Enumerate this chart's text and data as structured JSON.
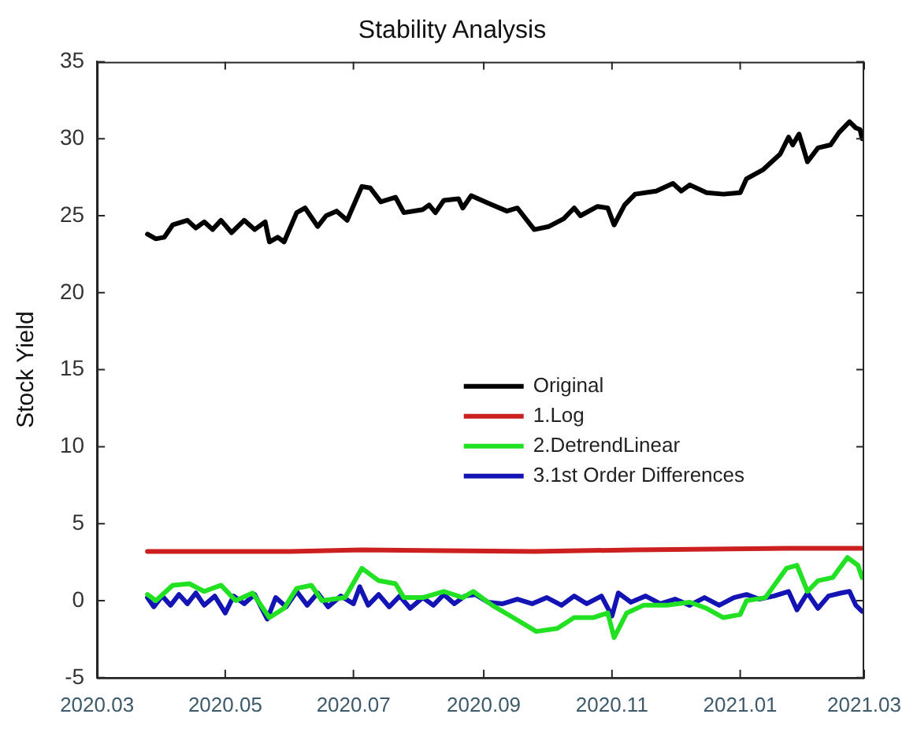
{
  "chart_data": {
    "type": "line",
    "title": "Stability Analysis",
    "ylabel": "Stock Yield",
    "xlim": [
      "2020-03-01",
      "2021-03-01"
    ],
    "xticks": [
      {
        "value": "2020-03-01",
        "label": "2020.03"
      },
      {
        "value": "2020-05-01",
        "label": "2020.05"
      },
      {
        "value": "2020-07-01",
        "label": "2020.07"
      },
      {
        "value": "2020-09-01",
        "label": "2020.09"
      },
      {
        "value": "2020-11-01",
        "label": "2020.11"
      },
      {
        "value": "2021-01-01",
        "label": "2021.01"
      },
      {
        "value": "2021-03-01",
        "label": "2021.03"
      }
    ],
    "ylim": [
      -5,
      35
    ],
    "yticks": [
      -5,
      0,
      5,
      10,
      15,
      20,
      25,
      30,
      35
    ],
    "grid": false,
    "legend": "right",
    "marker": "none",
    "line_style": "solid",
    "series": [
      {
        "name": "Original",
        "color": "#000000",
        "x": [
          "2020-03-25",
          "2020-03-29",
          "2020-04-02",
          "2020-04-06",
          "2020-04-13",
          "2020-04-17",
          "2020-04-21",
          "2020-04-25",
          "2020-04-29",
          "2020-05-04",
          "2020-05-10",
          "2020-05-15",
          "2020-05-20",
          "2020-05-22",
          "2020-05-26",
          "2020-05-29",
          "2020-06-04",
          "2020-06-08",
          "2020-06-14",
          "2020-06-18",
          "2020-06-23",
          "2020-06-28",
          "2020-07-05",
          "2020-07-09",
          "2020-07-14",
          "2020-07-21",
          "2020-07-25",
          "2020-08-03",
          "2020-08-06",
          "2020-08-09",
          "2020-08-13",
          "2020-08-20",
          "2020-08-22",
          "2020-08-26",
          "2020-09-05",
          "2020-09-12",
          "2020-09-17",
          "2020-09-25",
          "2020-10-02",
          "2020-10-09",
          "2020-10-14",
          "2020-10-17",
          "2020-10-25",
          "2020-10-30",
          "2020-11-02",
          "2020-11-07",
          "2020-11-12",
          "2020-11-22",
          "2020-11-30",
          "2020-12-04",
          "2020-12-08",
          "2020-12-16",
          "2020-12-24",
          "2021-01-01",
          "2021-01-04",
          "2021-01-12",
          "2021-01-20",
          "2021-01-24",
          "2021-01-26",
          "2021-01-29",
          "2021-02-02",
          "2021-02-07",
          "2021-02-13",
          "2021-02-17",
          "2021-02-22",
          "2021-02-25",
          "2021-02-27",
          "2021-02-28"
        ],
        "values": [
          23.8,
          23.5,
          23.6,
          24.4,
          24.7,
          24.2,
          24.6,
          24.1,
          24.7,
          23.9,
          24.7,
          24.1,
          24.6,
          23.3,
          23.6,
          23.3,
          25.2,
          25.5,
          24.3,
          25.0,
          25.3,
          24.7,
          26.9,
          26.8,
          25.9,
          26.2,
          25.2,
          25.4,
          25.7,
          25.2,
          26.0,
          26.1,
          25.5,
          26.3,
          25.7,
          25.3,
          25.5,
          24.1,
          24.3,
          24.8,
          25.5,
          25.0,
          25.6,
          25.5,
          24.4,
          25.7,
          26.4,
          26.6,
          27.1,
          26.6,
          27.0,
          26.5,
          26.4,
          26.5,
          27.4,
          28.0,
          29.0,
          30.1,
          29.6,
          30.3,
          28.5,
          29.4,
          29.6,
          30.4,
          31.1,
          30.7,
          30.6,
          30.0
        ]
      },
      {
        "name": "1.Log",
        "color": "#cc1f1f",
        "x": [
          "2020-03-25",
          "2020-06-01",
          "2020-07-05",
          "2020-09-25",
          "2020-11-12",
          "2021-01-24",
          "2021-02-22",
          "2021-02-28"
        ],
        "values": [
          3.2,
          3.2,
          3.3,
          3.2,
          3.3,
          3.4,
          3.4,
          3.4
        ]
      },
      {
        "name": "2.DetrendLinear",
        "color": "#22e022",
        "x": [
          "2020-03-25",
          "2020-03-29",
          "2020-04-06",
          "2020-04-14",
          "2020-04-21",
          "2020-04-29",
          "2020-05-06",
          "2020-05-14",
          "2020-05-22",
          "2020-05-29",
          "2020-06-04",
          "2020-06-11",
          "2020-06-16",
          "2020-06-27",
          "2020-07-05",
          "2020-07-13",
          "2020-07-21",
          "2020-07-25",
          "2020-08-03",
          "2020-08-13",
          "2020-08-22",
          "2020-08-27",
          "2020-09-05",
          "2020-09-15",
          "2020-09-26",
          "2020-10-06",
          "2020-10-14",
          "2020-10-23",
          "2020-10-30",
          "2020-11-02",
          "2020-11-08",
          "2020-11-16",
          "2020-11-27",
          "2020-12-08",
          "2020-12-16",
          "2020-12-24",
          "2021-01-01",
          "2021-01-04",
          "2021-01-13",
          "2021-01-23",
          "2021-01-28",
          "2021-02-02",
          "2021-02-07",
          "2021-02-14",
          "2021-02-21",
          "2021-02-26",
          "2021-02-28"
        ],
        "values": [
          0.4,
          0,
          1.0,
          1.1,
          0.6,
          1.0,
          0,
          0.5,
          -1.1,
          -0.5,
          0.8,
          1.0,
          0,
          0.2,
          2.1,
          1.3,
          1.1,
          0.2,
          0.2,
          0.6,
          0.2,
          0.6,
          -0.3,
          -1.1,
          -2.0,
          -1.8,
          -1.1,
          -1.1,
          -0.8,
          -2.4,
          -0.8,
          -0.3,
          -0.3,
          -0.1,
          -0.5,
          -1.1,
          -0.9,
          0,
          0.2,
          2.1,
          2.3,
          0.6,
          1.3,
          1.5,
          2.8,
          2.3,
          1.5
        ]
      },
      {
        "name": "3.1st Order Differences",
        "color": "#1414b4",
        "x": [
          "2020-03-25",
          "2020-03-28",
          "2020-04-01",
          "2020-04-05",
          "2020-04-09",
          "2020-04-13",
          "2020-04-17",
          "2020-04-21",
          "2020-04-26",
          "2020-05-01",
          "2020-05-05",
          "2020-05-10",
          "2020-05-15",
          "2020-05-21",
          "2020-05-25",
          "2020-05-30",
          "2020-06-04",
          "2020-06-09",
          "2020-06-14",
          "2020-06-19",
          "2020-06-25",
          "2020-07-01",
          "2020-07-04",
          "2020-07-08",
          "2020-07-13",
          "2020-07-18",
          "2020-07-23",
          "2020-07-28",
          "2020-08-03",
          "2020-08-08",
          "2020-08-13",
          "2020-08-18",
          "2020-08-23",
          "2020-08-28",
          "2020-09-03",
          "2020-09-10",
          "2020-09-17",
          "2020-09-24",
          "2020-10-01",
          "2020-10-08",
          "2020-10-14",
          "2020-10-20",
          "2020-10-27",
          "2020-11-01",
          "2020-11-04",
          "2020-11-10",
          "2020-11-17",
          "2020-11-24",
          "2020-12-01",
          "2020-12-08",
          "2020-12-15",
          "2020-12-22",
          "2020-12-29",
          "2021-01-04",
          "2021-01-10",
          "2021-01-17",
          "2021-01-24",
          "2021-01-28",
          "2021-02-02",
          "2021-02-07",
          "2021-02-12",
          "2021-02-18",
          "2021-02-22",
          "2021-02-25",
          "2021-02-28"
        ],
        "values": [
          0.2,
          -0.4,
          0.3,
          -0.3,
          0.4,
          -0.2,
          0.5,
          -0.3,
          0.3,
          -0.8,
          0.3,
          -0.2,
          0.4,
          -1.2,
          0.2,
          -0.4,
          0.6,
          -0.3,
          0.5,
          -0.4,
          0.3,
          -0.2,
          0.9,
          -0.3,
          0.4,
          -0.4,
          0.3,
          -0.5,
          0.2,
          -0.3,
          0.4,
          -0.2,
          0.3,
          0.4,
          -0.1,
          -0.2,
          0.1,
          -0.2,
          0.2,
          -0.3,
          0.3,
          -0.2,
          0.3,
          -1.0,
          0.5,
          -0.1,
          0.3,
          -0.2,
          0.1,
          -0.3,
          0.2,
          -0.3,
          0.2,
          0.4,
          0.1,
          0.3,
          0.6,
          -0.6,
          0.5,
          -0.5,
          0.3,
          0.5,
          0.6,
          -0.3,
          -0.7
        ]
      }
    ]
  }
}
